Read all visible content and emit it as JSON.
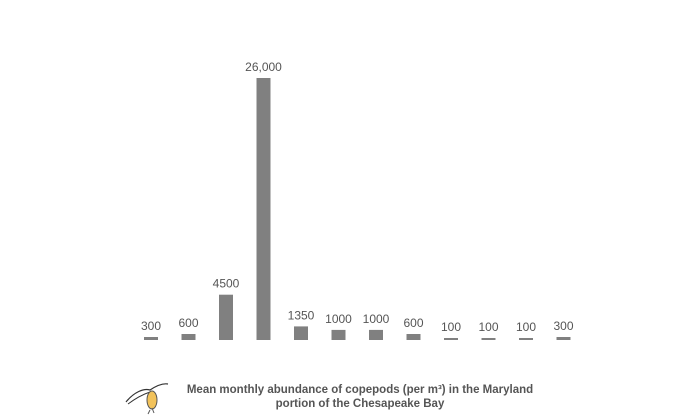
{
  "chart_data": {
    "type": "bar",
    "title": "",
    "caption_line1": "Mean monthly abundance of copepods (per m³) in the Maryland",
    "caption_line2": "portion of the Chesapeake Bay",
    "xlabel": "",
    "ylabel": "",
    "value_labels": [
      "300",
      "600",
      "4500",
      "26,000",
      "1350",
      "1000",
      "1000",
      "600",
      "100",
      "100",
      "100",
      "300"
    ],
    "values": [
      300,
      600,
      4500,
      26000,
      1350,
      1000,
      1000,
      600,
      100,
      100,
      100,
      300
    ],
    "ylim": [
      0,
      26000
    ],
    "grid": false,
    "legend": "none",
    "bar_color": "#808080",
    "label_color": "#555555"
  },
  "icon": "copepod-icon"
}
